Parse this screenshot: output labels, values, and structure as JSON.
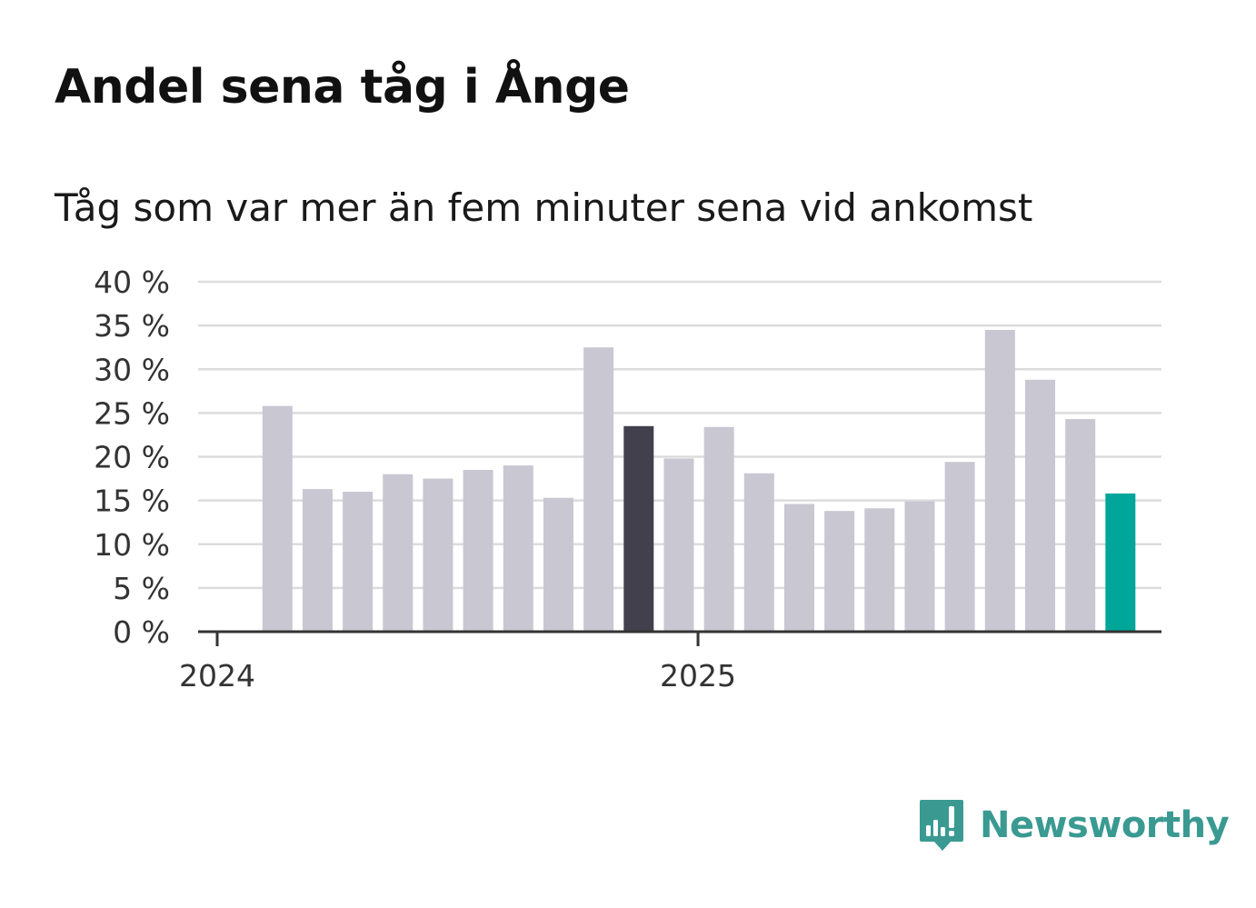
{
  "title": "Andel sena tåg i Ånge",
  "subtitle": "Tåg som var mer än fem minuter sena vid ankomst",
  "brand": {
    "name": "Newsworthy",
    "color": "#3a9a92",
    "logo_icon": "bar-chart-speech-bubble-icon"
  },
  "colors": {
    "default_bar": "#c8c7d2",
    "highlight_bar": "#42404c",
    "latest_bar": "#00a69a",
    "grid": "#dcdcdc",
    "axis": "#333333"
  },
  "chart_data": {
    "type": "bar",
    "title": "Andel sena tåg i Ånge",
    "subtitle": "Tåg som var mer än fem minuter sena vid ankomst",
    "xlabel": "",
    "ylabel": "",
    "unit": "%",
    "ylim": [
      0,
      40
    ],
    "yticks": [
      0,
      5,
      10,
      15,
      20,
      25,
      30,
      35,
      40
    ],
    "ytick_labels": [
      "0 %",
      "5 %",
      "10 %",
      "15 %",
      "20 %",
      "25 %",
      "30 %",
      "35 %",
      "40 %"
    ],
    "xtick_labels": [
      "2024",
      "2025"
    ],
    "categories": [
      "2024-01",
      "2024-02",
      "2024-03",
      "2024-04",
      "2024-05",
      "2024-06",
      "2024-07",
      "2024-08",
      "2024-09",
      "2024-10",
      "2024-11",
      "2024-12",
      "2025-01",
      "2025-02",
      "2025-03",
      "2025-04",
      "2025-05",
      "2025-06",
      "2025-07",
      "2025-08",
      "2025-09",
      "2025-10",
      "2025-11",
      "2025-12"
    ],
    "values": [
      null,
      25.8,
      16.3,
      16.0,
      18.0,
      17.5,
      18.5,
      19.0,
      15.3,
      32.5,
      23.5,
      19.8,
      23.4,
      18.1,
      14.6,
      13.8,
      14.1,
      14.9,
      19.4,
      34.5,
      28.8,
      24.3,
      15.8,
      null
    ],
    "highlight_category": "2024-11",
    "latest_category": "2025-11",
    "grid": true,
    "legend": "none"
  }
}
